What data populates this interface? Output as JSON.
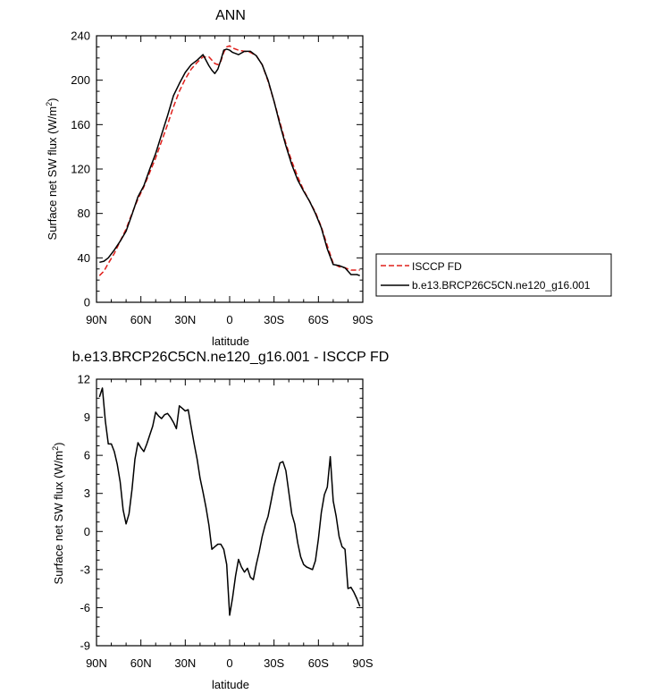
{
  "chart_data": [
    {
      "type": "line",
      "title": "ANN",
      "xlabel": "latitude",
      "ylabel": "Surface net SW flux (W/m",
      "ylabel_sup": "2",
      "ylabel_end": ")",
      "xlim": [
        90,
        -90
      ],
      "ylim": [
        0,
        240
      ],
      "x_ticks": [
        90,
        60,
        30,
        0,
        -30,
        -60,
        -90
      ],
      "x_tick_labels": [
        "90N",
        "60N",
        "30N",
        "0",
        "30S",
        "60S",
        "90S"
      ],
      "y_ticks": [
        0,
        40,
        80,
        120,
        160,
        200,
        240
      ],
      "y_tick_labels": [
        "0",
        "40",
        "80",
        "120",
        "160",
        "200",
        "240"
      ],
      "grid": false,
      "legend": "right",
      "series": [
        {
          "name": "ISCCP FD",
          "color": "#e0201c",
          "dash": "dashed",
          "x": [
            88,
            85,
            82,
            78,
            74,
            70,
            66,
            62,
            58,
            54,
            50,
            46,
            42,
            38,
            34,
            30,
            26,
            22,
            18,
            14,
            12,
            10,
            8,
            6,
            4,
            2,
            0,
            -2,
            -6,
            -10,
            -14,
            -18,
            -22,
            -26,
            -30,
            -34,
            -38,
            -42,
            -46,
            -50,
            -54,
            -58,
            -62,
            -66,
            -70,
            -74,
            -78,
            -82,
            -86,
            -88
          ],
          "y": [
            24,
            28,
            35,
            44,
            55,
            66,
            80,
            93,
            104,
            117,
            130,
            145,
            160,
            176,
            190,
            201,
            210,
            216,
            221,
            221,
            218,
            215,
            214,
            217,
            225,
            230,
            231,
            229,
            227,
            226,
            225,
            222,
            214,
            199,
            181,
            162,
            143,
            127,
            113,
            101,
            91,
            81,
            68,
            51,
            35,
            32,
            31,
            29,
            29,
            29
          ]
        },
        {
          "name": "b.e13.BRCP26C5CN.ne120_g16.001",
          "color": "#000000",
          "dash": "solid",
          "x": [
            88,
            85,
            82,
            78,
            74,
            70,
            66,
            62,
            58,
            54,
            50,
            46,
            42,
            38,
            34,
            30,
            26,
            22,
            18,
            14,
            12,
            10,
            8,
            6,
            4,
            2,
            0,
            -2,
            -6,
            -10,
            -14,
            -18,
            -22,
            -26,
            -30,
            -34,
            -38,
            -42,
            -46,
            -50,
            -54,
            -58,
            -62,
            -66,
            -70,
            -74,
            -78,
            -82,
            -86,
            -88
          ],
          "y": [
            36,
            37,
            40,
            47,
            55,
            64,
            79,
            95,
            105,
            120,
            134,
            151,
            168,
            186,
            197,
            207,
            214,
            218,
            223,
            213,
            209,
            206,
            210,
            218,
            227,
            228,
            227,
            225,
            223,
            226,
            226,
            222,
            214,
            200,
            181,
            160,
            141,
            124,
            110,
            100,
            91,
            80,
            67,
            48,
            34,
            33,
            31,
            25,
            25,
            24
          ]
        }
      ]
    },
    {
      "type": "line",
      "title": "b.e13.BRCP26C5CN.ne120_g16.001 - ISCCP FD",
      "xlabel": "latitude",
      "ylabel": "Surface net SW flux (W/m",
      "ylabel_sup": "2",
      "ylabel_end": ")",
      "xlim": [
        90,
        -90
      ],
      "ylim": [
        -9,
        12
      ],
      "x_ticks": [
        90,
        60,
        30,
        0,
        -30,
        -60,
        -90
      ],
      "x_tick_labels": [
        "90N",
        "60N",
        "30N",
        "0",
        "30S",
        "60S",
        "90S"
      ],
      "y_ticks": [
        -9,
        -6,
        -3,
        0,
        3,
        6,
        9,
        12
      ],
      "y_tick_labels": [
        "-9",
        "-6",
        "-3",
        "0",
        "3",
        "6",
        "9",
        "12"
      ],
      "grid": false,
      "series": [
        {
          "color": "#000000",
          "x": [
            88,
            86,
            84,
            82,
            80,
            78,
            76,
            74,
            72,
            70,
            68,
            66,
            64,
            62,
            60,
            58,
            56,
            54,
            52,
            50,
            48,
            46,
            44,
            42,
            40,
            38,
            36,
            34,
            32,
            30,
            28,
            26,
            24,
            22,
            20,
            18,
            16,
            14,
            12,
            10,
            8,
            6,
            4,
            2,
            0,
            -2,
            -4,
            -6,
            -8,
            -10,
            -12,
            -14,
            -16,
            -18,
            -20,
            -22,
            -24,
            -26,
            -28,
            -30,
            -32,
            -34,
            -36,
            -38,
            -40,
            -42,
            -44,
            -46,
            -48,
            -50,
            -52,
            -54,
            -56,
            -58,
            -60,
            -62,
            -64,
            -66,
            -68,
            -70,
            -72,
            -74,
            -76,
            -78,
            -80,
            -82,
            -84,
            -86,
            -88
          ],
          "y": [
            10.6,
            11.3,
            8.7,
            6.9,
            6.9,
            6.3,
            5.3,
            3.9,
            1.7,
            0.6,
            1.4,
            3.3,
            5.7,
            7.0,
            6.6,
            6.3,
            6.9,
            7.6,
            8.3,
            9.4,
            9.1,
            8.9,
            9.2,
            9.3,
            9.0,
            8.6,
            8.1,
            9.9,
            9.7,
            9.5,
            9.6,
            8.2,
            6.9,
            5.7,
            4.2,
            3.1,
            1.9,
            0.5,
            -1.4,
            -1.2,
            -1.0,
            -1.0,
            -1.4,
            -2.6,
            -6.6,
            -5.2,
            -3.5,
            -2.2,
            -2.8,
            -3.2,
            -2.9,
            -3.6,
            -3.8,
            -2.6,
            -1.6,
            -0.4,
            0.5,
            1.2,
            2.4,
            3.6,
            4.5,
            5.4,
            5.5,
            4.8,
            3.1,
            1.4,
            0.6,
            -0.9,
            -2.0,
            -2.6,
            -2.8,
            -2.9,
            -3.0,
            -2.3,
            -0.6,
            1.5,
            2.9,
            3.5,
            5.9,
            2.4,
            1.2,
            -0.4,
            -1.2,
            -1.4,
            -4.5,
            -4.4,
            -4.8,
            -5.3,
            -5.9
          ]
        }
      ]
    }
  ]
}
